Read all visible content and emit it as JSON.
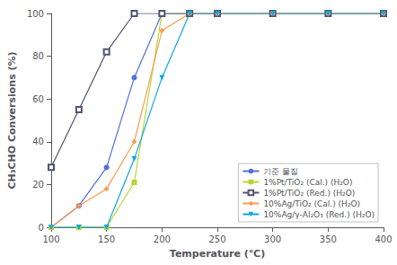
{
  "chart_data": {
    "type": "line",
    "xlabel": "Temperature (℃)",
    "ylabel": "CH₃CHO Conversions (%)",
    "x": [
      100,
      125,
      150,
      175,
      200,
      225,
      250,
      300,
      350,
      400
    ],
    "series": [
      {
        "name": "기준 물질",
        "marker": "circle",
        "line_style": "solid",
        "values": [
          0,
          10,
          28,
          70,
          100,
          100,
          100,
          100,
          100,
          100
        ]
      },
      {
        "name": "1%Pt/TiO₂ (Cal.) (H₂O)",
        "marker": "square",
        "line_style": "solid",
        "values": [
          0,
          0,
          0,
          21,
          100,
          100,
          100,
          100,
          100,
          100
        ]
      },
      {
        "name": "1%Pt/TiO₂ (Red.) (H₂O)",
        "marker": "open-square",
        "line_style": "solid",
        "values": [
          28,
          55,
          82,
          100,
          100,
          100,
          100,
          100,
          100,
          100
        ]
      },
      {
        "name": "10%Ag/TiO₂ (Cal.) (H₂O)",
        "marker": "diamond",
        "line_style": "solid",
        "values": [
          0,
          10,
          18,
          40,
          92,
          100,
          100,
          100,
          100,
          100
        ]
      },
      {
        "name": "10%Ag/γ-Al₂O₃ (Red.) (H₂O)",
        "marker": "triangle-down",
        "line_style": "solid",
        "values": [
          0,
          0,
          0,
          32,
          70,
          100,
          100,
          100,
          100,
          100
        ]
      }
    ],
    "xlim": [
      100,
      400
    ],
    "ylim": [
      0,
      100
    ],
    "xticks": [
      100,
      150,
      200,
      250,
      300,
      350,
      400
    ],
    "yticks": [
      0,
      20,
      40,
      60,
      80,
      100
    ],
    "grid": false,
    "legend": "lower right"
  }
}
